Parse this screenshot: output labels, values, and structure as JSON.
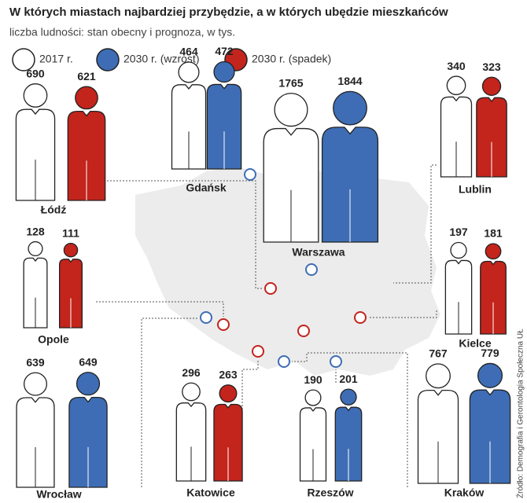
{
  "chart_data": {
    "type": "pictogram",
    "title": "W których miastach najbardziej przybędzie, a w których ubędzie mieszkańców",
    "subtitle": "liczba ludności: stan obecny i prognoza, w tys.",
    "categories": [
      "Łódź",
      "Gdańsk",
      "Warszawa",
      "Lublin",
      "Opole",
      "Kielce",
      "Wrocław",
      "Katowice",
      "Rzeszów",
      "Kraków"
    ],
    "series": [
      {
        "name": "2017 r.",
        "color": "#ffffff",
        "values": [
          690,
          464,
          1765,
          340,
          128,
          197,
          639,
          296,
          190,
          767
        ]
      },
      {
        "name": "2030 r. (wzrost)",
        "color": "#3e6db5",
        "values": [
          null,
          472,
          1844,
          null,
          null,
          null,
          649,
          null,
          201,
          779
        ]
      },
      {
        "name": "2030 r. (spadek)",
        "color": "#c3241c",
        "values": [
          621,
          null,
          null,
          323,
          111,
          181,
          null,
          263,
          null,
          null
        ]
      }
    ],
    "source": "Źródło: Demografia i Gerontologia Społeczna UŁ"
  }
}
